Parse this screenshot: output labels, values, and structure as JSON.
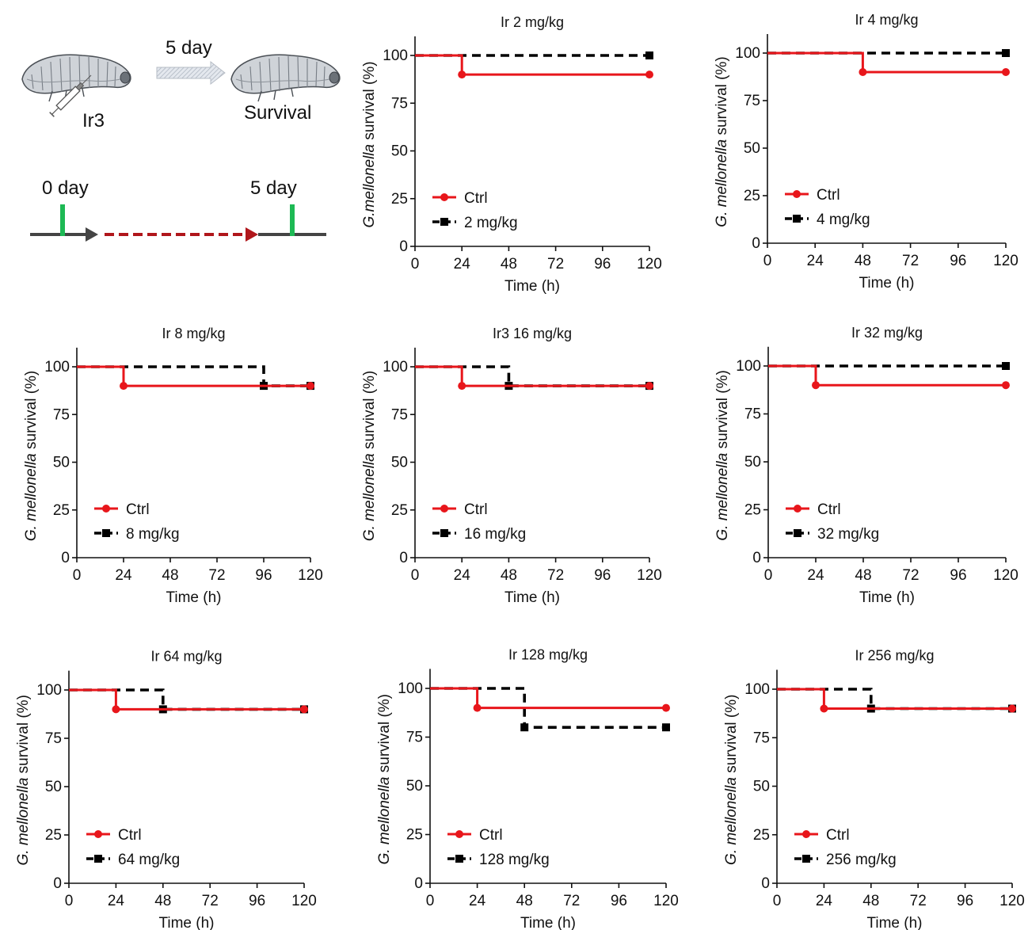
{
  "schematic": {
    "injection_label": "Ir3",
    "arrow_label": "5 day",
    "outcome_label": "Survival",
    "timeline_start": "0 day",
    "timeline_end": "5 day"
  },
  "colors": {
    "ctrl": "#e8161b",
    "treated": "#000000",
    "timeline_marker": "#1db954",
    "timeline_dash": "#b0161b",
    "timeline_solid": "#444444"
  },
  "chart_data": [
    {
      "type": "line",
      "subtype": "kaplan-meier",
      "title": "Ir 2 mg/kg",
      "xlabel": "Time (h)",
      "ylabel_italic": "G.mellonella",
      "ylabel_rest": " survival (%)",
      "xticks": [
        0,
        24,
        48,
        72,
        96,
        120
      ],
      "yticks": [
        0,
        25,
        50,
        75,
        100
      ],
      "xlim": [
        0,
        120
      ],
      "ylim": [
        0,
        110
      ],
      "legend_position": "lower-left",
      "series": [
        {
          "name": "Ctrl",
          "color": "#e8161b",
          "style": "solid",
          "marker": "circle",
          "x": [
            0,
            24,
            120
          ],
          "y": [
            100,
            90,
            90
          ]
        },
        {
          "name": "2 mg/kg",
          "color": "#000000",
          "style": "dashed",
          "marker": "square",
          "x": [
            0,
            120
          ],
          "y": [
            100,
            100
          ]
        }
      ]
    },
    {
      "type": "line",
      "subtype": "kaplan-meier",
      "title": "Ir 4 mg/kg",
      "xlabel": "Time (h)",
      "ylabel_italic": "G. mellonella",
      "ylabel_rest": " survival (%)",
      "xticks": [
        0,
        24,
        48,
        72,
        96,
        120
      ],
      "yticks": [
        0,
        25,
        50,
        75,
        100
      ],
      "xlim": [
        0,
        120
      ],
      "ylim": [
        0,
        110
      ],
      "legend_position": "lower-left",
      "series": [
        {
          "name": "Ctrl",
          "color": "#e8161b",
          "style": "solid",
          "marker": "circle",
          "x": [
            0,
            48,
            120
          ],
          "y": [
            100,
            90,
            90
          ]
        },
        {
          "name": "4 mg/kg",
          "color": "#000000",
          "style": "dashed",
          "marker": "square",
          "x": [
            0,
            120
          ],
          "y": [
            100,
            100
          ]
        }
      ]
    },
    {
      "type": "line",
      "subtype": "kaplan-meier",
      "title": "Ir 8 mg/kg",
      "xlabel": "Time (h)",
      "ylabel_italic": "G. mellonella",
      "ylabel_rest": " survival (%)",
      "xticks": [
        0,
        24,
        48,
        72,
        96,
        120
      ],
      "yticks": [
        0,
        25,
        50,
        75,
        100
      ],
      "xlim": [
        0,
        120
      ],
      "ylim": [
        0,
        110
      ],
      "legend_position": "lower-left",
      "series": [
        {
          "name": "Ctrl",
          "color": "#e8161b",
          "style": "solid",
          "marker": "circle",
          "x": [
            0,
            24,
            120
          ],
          "y": [
            100,
            90,
            90
          ]
        },
        {
          "name": "8 mg/kg",
          "color": "#000000",
          "style": "dashed",
          "marker": "square",
          "x": [
            0,
            96,
            120
          ],
          "y": [
            100,
            90,
            90
          ]
        }
      ]
    },
    {
      "type": "line",
      "subtype": "kaplan-meier",
      "title": "Ir3 16 mg/kg",
      "xlabel": "Time (h)",
      "ylabel_italic": "G. mellonella",
      "ylabel_rest": " survival (%)",
      "xticks": [
        0,
        24,
        48,
        72,
        96,
        120
      ],
      "yticks": [
        0,
        25,
        50,
        75,
        100
      ],
      "xlim": [
        0,
        120
      ],
      "ylim": [
        0,
        110
      ],
      "legend_position": "lower-left",
      "series": [
        {
          "name": "Ctrl",
          "color": "#e8161b",
          "style": "solid",
          "marker": "circle",
          "x": [
            0,
            24,
            120
          ],
          "y": [
            100,
            90,
            90
          ]
        },
        {
          "name": "16 mg/kg",
          "color": "#000000",
          "style": "dashed",
          "marker": "square",
          "x": [
            0,
            48,
            120
          ],
          "y": [
            100,
            90,
            90
          ]
        }
      ]
    },
    {
      "type": "line",
      "subtype": "kaplan-meier",
      "title": "Ir 32 mg/kg",
      "xlabel": "Time (h)",
      "ylabel_italic": "G. mellonella",
      "ylabel_rest": " survival (%)",
      "xticks": [
        0,
        24,
        48,
        72,
        96,
        120
      ],
      "yticks": [
        0,
        25,
        50,
        75,
        100
      ],
      "xlim": [
        0,
        120
      ],
      "ylim": [
        0,
        110
      ],
      "legend_position": "lower-left",
      "series": [
        {
          "name": "Ctrl",
          "color": "#e8161b",
          "style": "solid",
          "marker": "circle",
          "x": [
            0,
            24,
            120
          ],
          "y": [
            100,
            90,
            90
          ]
        },
        {
          "name": "32 mg/kg",
          "color": "#000000",
          "style": "dashed",
          "marker": "square",
          "x": [
            0,
            120
          ],
          "y": [
            100,
            100
          ]
        }
      ]
    },
    {
      "type": "line",
      "subtype": "kaplan-meier",
      "title": "Ir 64 mg/kg",
      "xlabel": "Time (h)",
      "ylabel_italic": "G. mellonella",
      "ylabel_rest": " survival (%)",
      "xticks": [
        0,
        24,
        48,
        72,
        96,
        120
      ],
      "yticks": [
        0,
        25,
        50,
        75,
        100
      ],
      "xlim": [
        0,
        120
      ],
      "ylim": [
        0,
        110
      ],
      "legend_position": "lower-left",
      "series": [
        {
          "name": "Ctrl",
          "color": "#e8161b",
          "style": "solid",
          "marker": "circle",
          "x": [
            0,
            24,
            120
          ],
          "y": [
            100,
            90,
            90
          ]
        },
        {
          "name": "64 mg/kg",
          "color": "#000000",
          "style": "dashed",
          "marker": "square",
          "x": [
            0,
            48,
            120
          ],
          "y": [
            100,
            90,
            90
          ]
        }
      ]
    },
    {
      "type": "line",
      "subtype": "kaplan-meier",
      "title": "Ir 128 mg/kg",
      "xlabel": "Time (h)",
      "ylabel_italic": "G. mellonella",
      "ylabel_rest": " survival (%)",
      "xticks": [
        0,
        24,
        48,
        72,
        96,
        120
      ],
      "yticks": [
        0,
        25,
        50,
        75,
        100
      ],
      "xlim": [
        0,
        120
      ],
      "ylim": [
        0,
        110
      ],
      "legend_position": "lower-left",
      "series": [
        {
          "name": "Ctrl",
          "color": "#e8161b",
          "style": "solid",
          "marker": "circle",
          "x": [
            0,
            24,
            120
          ],
          "y": [
            100,
            90,
            90
          ]
        },
        {
          "name": "128 mg/kg",
          "color": "#000000",
          "style": "dashed",
          "marker": "square",
          "x": [
            0,
            48,
            120
          ],
          "y": [
            100,
            80,
            80
          ]
        }
      ]
    },
    {
      "type": "line",
      "subtype": "kaplan-meier",
      "title": "Ir 256 mg/kg",
      "xlabel": "Time (h)",
      "ylabel_italic": "G. mellonella",
      "ylabel_rest": " survival (%)",
      "xticks": [
        0,
        24,
        48,
        72,
        96,
        120
      ],
      "yticks": [
        0,
        25,
        50,
        75,
        100
      ],
      "xlim": [
        0,
        120
      ],
      "ylim": [
        0,
        110
      ],
      "legend_position": "lower-left",
      "series": [
        {
          "name": "Ctrl",
          "color": "#e8161b",
          "style": "solid",
          "marker": "circle",
          "x": [
            0,
            24,
            120
          ],
          "y": [
            100,
            90,
            90
          ]
        },
        {
          "name": "256 mg/kg",
          "color": "#000000",
          "style": "dashed",
          "marker": "square",
          "x": [
            0,
            48,
            120
          ],
          "y": [
            100,
            90,
            90
          ]
        }
      ]
    }
  ]
}
